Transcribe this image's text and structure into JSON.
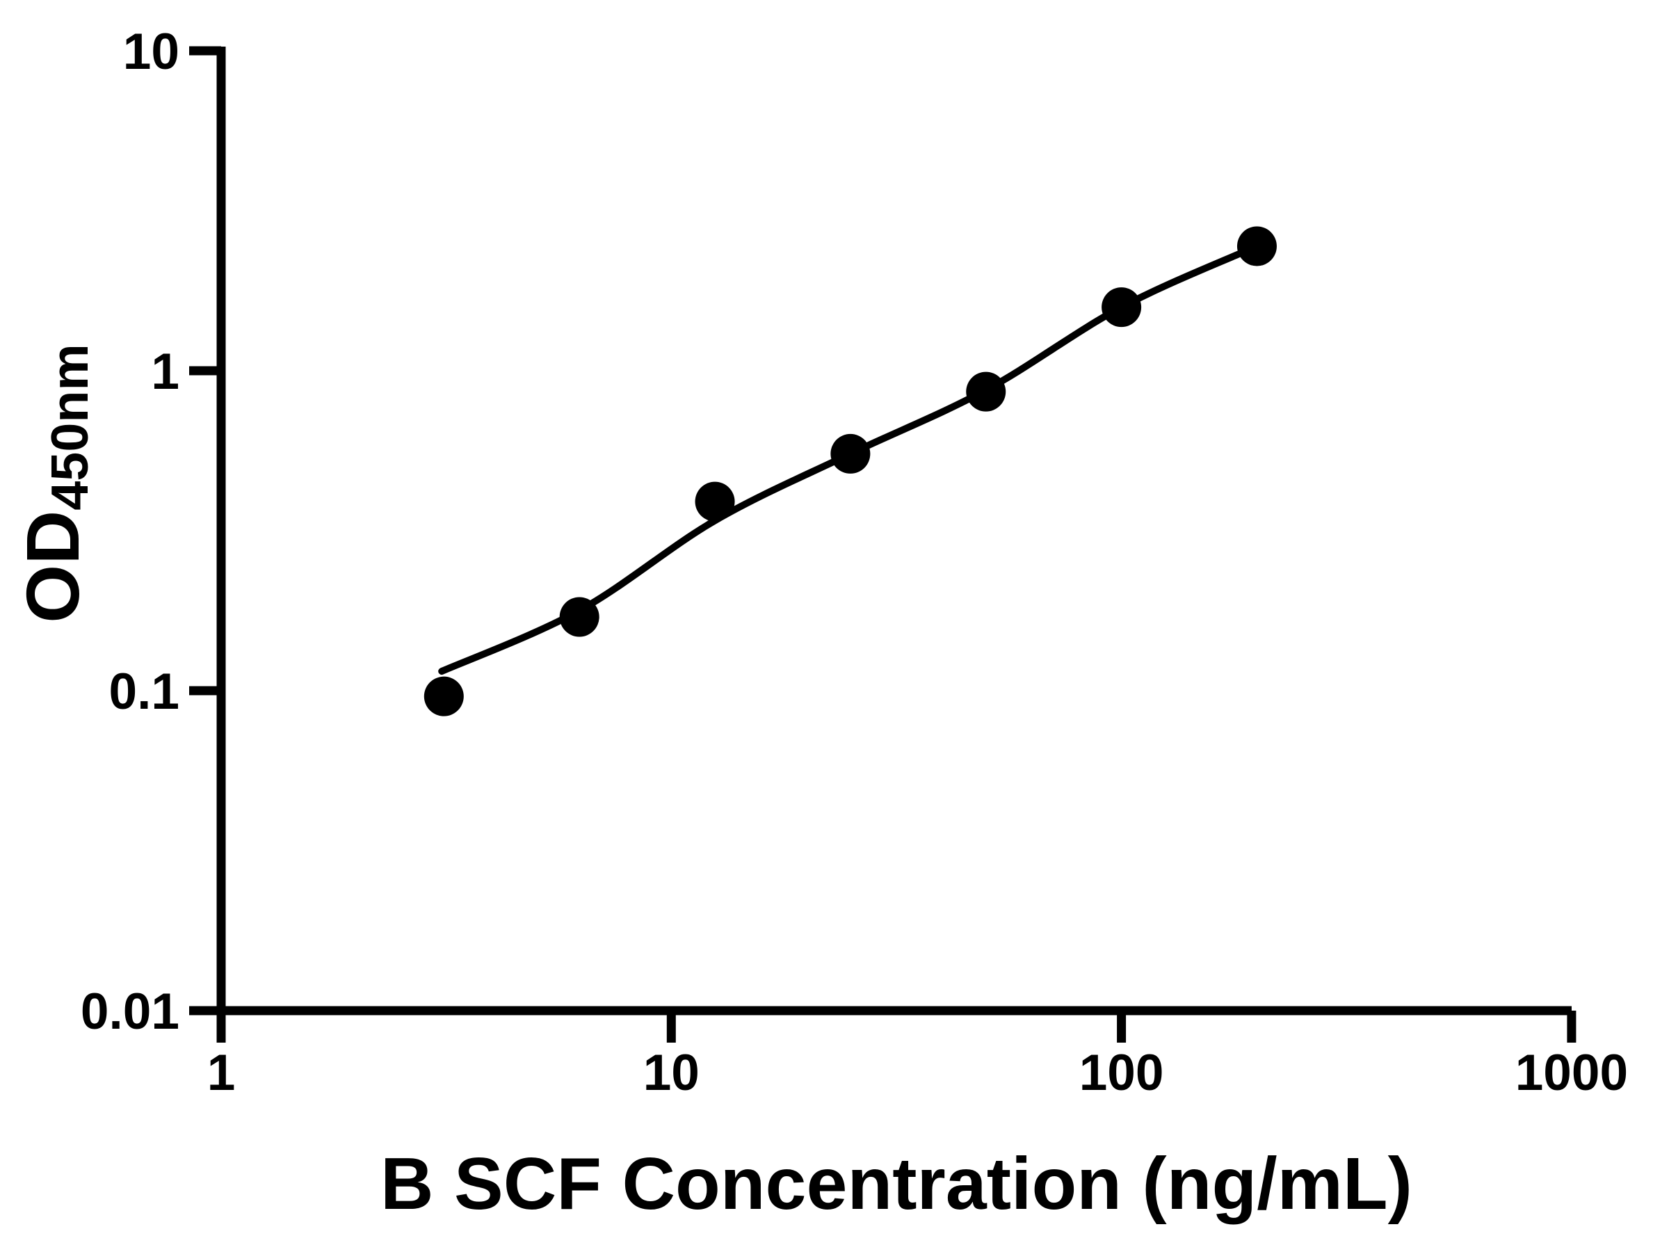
{
  "chart_data": {
    "type": "scatter",
    "title": "",
    "xlabel": "B SCF Concentration (ng/mL)",
    "ylabel_main": "OD",
    "ylabel_sub": "450nm",
    "x_scale": "log",
    "y_scale": "log",
    "xlim": [
      1,
      1000
    ],
    "ylim": [
      0.01,
      10
    ],
    "grid": false,
    "legend": "none",
    "x_ticks": {
      "values": [
        1,
        10,
        100,
        1000
      ],
      "labels": [
        "1",
        "10",
        "100",
        "1000"
      ]
    },
    "y_ticks": {
      "values": [
        10,
        1,
        0.1,
        0.01
      ],
      "labels": [
        "10",
        "1",
        "0.1",
        "0.01"
      ]
    },
    "series": [
      {
        "name": "B SCF standard curve points",
        "marker": "filled-circle",
        "color": "#000000",
        "x": [
          3.125,
          6.25,
          12.5,
          25,
          50,
          100,
          200
        ],
        "y": [
          0.096,
          0.17,
          0.39,
          0.55,
          0.86,
          1.58,
          2.45
        ]
      }
    ],
    "fit_curve": {
      "name": "fitted standard curve line",
      "color": "#000000",
      "x": [
        3.09,
        6.25,
        12.5,
        25,
        50,
        100,
        200
      ],
      "y": [
        0.115,
        0.178,
        0.34,
        0.55,
        0.87,
        1.58,
        2.45
      ]
    },
    "colors": {
      "background": "#ffffff",
      "foreground": "#000000"
    }
  }
}
